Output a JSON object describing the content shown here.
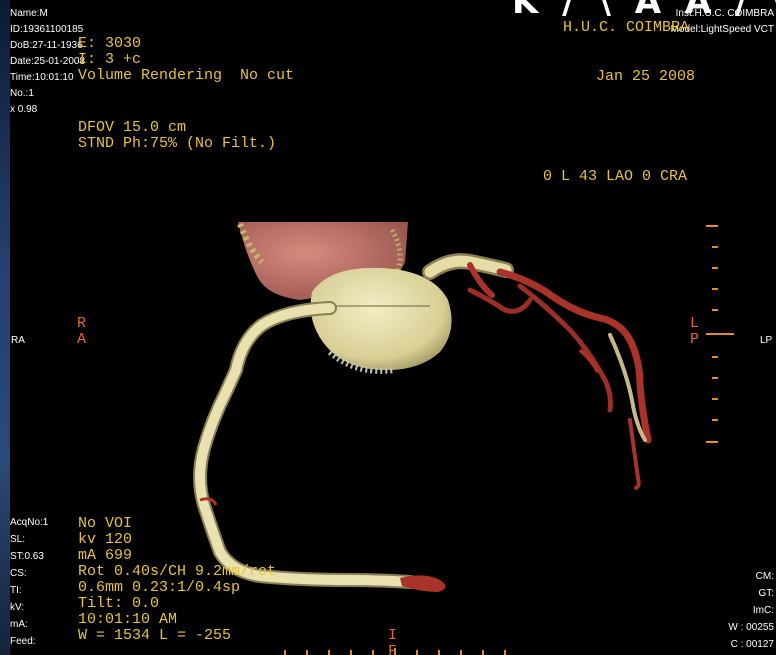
{
  "colors": {
    "overlay_yellow": "#e8c23a",
    "overlay_white": "#ffffff",
    "tick_orange": "#e8891f",
    "vessel": "#e9e2b0",
    "vessel_shadow": "#8a7f52",
    "heart_tissue": "#c9786e",
    "distal_red": "#a8332a"
  },
  "patient_info": {
    "name": "Name:M",
    "id": "ID:19361100185",
    "dob": "DoB:27-11-1936",
    "date": "Date:25-01-2008",
    "time": "Time:10:01:10",
    "no": "No.:1",
    "zoom": "x 0.98"
  },
  "institution": {
    "inst": "Inst:H.U.C. COIMBRA",
    "model": "Model:LightSpeed VCT",
    "big_partial": "K / \\ A A / \\"
  },
  "scan_header": {
    "line1": "E: 3030",
    "line2": "I: 3 +c",
    "line3": "Volume Rendering  No cut",
    "site": "H.U.C. COIMBRA",
    "date": "Jan 25 2008"
  },
  "dfov": {
    "line1": "DFOV 15.0 cm",
    "line2": "STND Ph:75% (No Filt.)"
  },
  "orientation": {
    "angle": "0 L 43 LAO 0 CRA",
    "left_marker_top": "R",
    "left_marker_bottom": "A",
    "right_marker_top": "L",
    "right_marker_bottom": "P",
    "left_edge": "RA",
    "right_edge": "LP",
    "bottom_marker_top": "I",
    "bottom_marker_bottom": "F"
  },
  "acq_labels": [
    "AcqNo:1",
    "SL:",
    "ST:0.63",
    "CS:",
    "TI:",
    "kV:",
    "mA:",
    "Feed:"
  ],
  "acq_values": [
    "No VOI",
    "kv 120",
    "mA 699",
    "Rot 0.40s/CH 9.2mm/rot",
    "0.6mm 0.23:1/0.4sp",
    "Tilt: 0.0",
    "10:01:10 AM",
    "W = 1534 L = -255"
  ],
  "right_bottom": [
    "CM:",
    "GT:",
    "ImC:",
    "W : 00255",
    "C : 00127"
  ]
}
